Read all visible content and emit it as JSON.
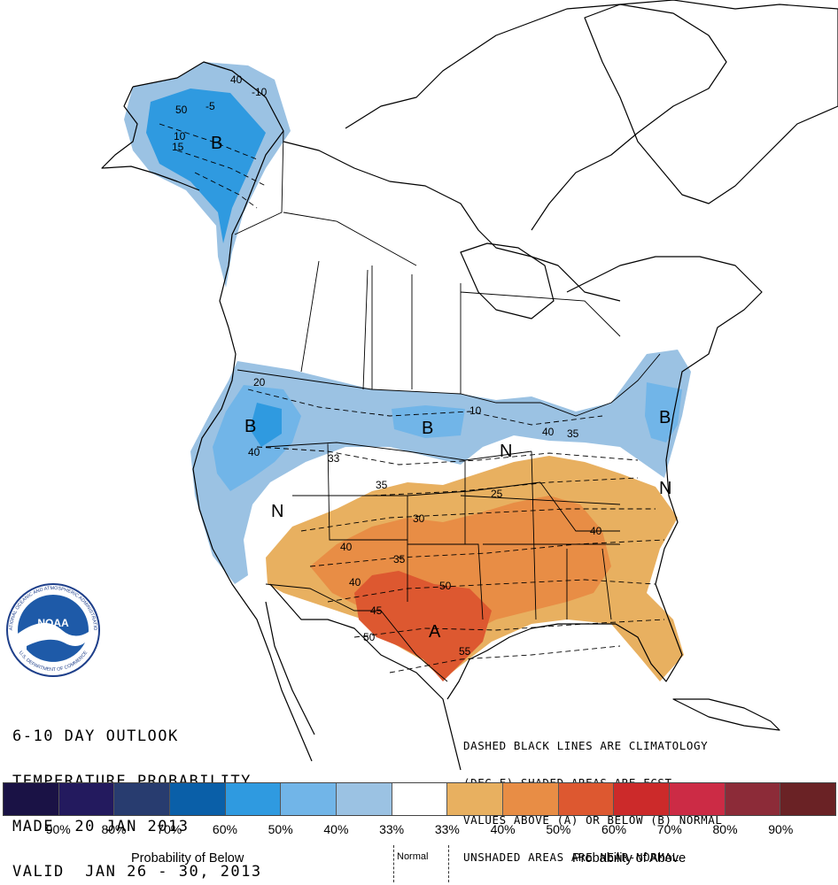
{
  "title": {
    "line1": "6-10 DAY OUTLOOK",
    "line2": "TEMPERATURE PROBABILITY",
    "line3": "MADE  20 JAN 2013",
    "line4": "VALID  JAN 26 - 30, 2013"
  },
  "notes": {
    "line1": "DASHED BLACK LINES ARE CLIMATOLOGY",
    "line2": "(DEG F) SHADED AREAS ARE FCST",
    "line3": "VALUES ABOVE (A) OR BELOW (B) NORMAL",
    "line4": "UNSHADED AREAS ARE NEAR-NORMAL"
  },
  "regions": {
    "alaska": "B",
    "northwest": "B",
    "northern_plains": "B",
    "northeast": "B",
    "great_lakes": "N",
    "mid_atlantic": "N",
    "great_basin": "N",
    "southern_plains": "A"
  },
  "contour_labels": {
    "ak1": "40",
    "ak2": "-10",
    "ak3": "50",
    "ak4": "-5",
    "ak5": "10",
    "ak6": "15",
    "nw1": "20",
    "nw2": "40",
    "np1": "10",
    "gl1": "40",
    "gl2": "35",
    "c1": "33",
    "c2": "35",
    "c3": "25",
    "c4": "30",
    "c5": "40",
    "c6": "35",
    "c7": "40",
    "c8": "50",
    "c9": "45",
    "c10": "50",
    "c11": "55",
    "c12": "40"
  },
  "noaa_logo": {
    "center_text": "NOAA",
    "ring_top": "NATIONAL OCEANIC AND ATMOSPHERIC ADMINISTRATION",
    "ring_bottom": "U.S. DEPARTMENT OF COMMERCE"
  },
  "legend": {
    "colors": [
      "#1a1245",
      "#231a5e",
      "#283c6f",
      "#0a5fa8",
      "#2f9ae0",
      "#71b5e8",
      "#9bc2e3",
      "#ffffff",
      "#e8b060",
      "#e88d45",
      "#dd5830",
      "#cc2a2a",
      "#cc2b45",
      "#8c2b38",
      "#6a2225"
    ],
    "ticks": [
      "90%",
      "80%",
      "70%",
      "60%",
      "50%",
      "40%",
      "33%",
      "33%",
      "40%",
      "50%",
      "60%",
      "70%",
      "80%",
      "90%"
    ],
    "below_caption": "Probability of Below",
    "normal_caption": "Normal",
    "above_caption": "Probability of Above"
  },
  "shading_colors": {
    "below_40": "#9bc2e3",
    "below_50": "#71b5e8",
    "below_60": "#2f9ae0",
    "above_40": "#e8b060",
    "above_50": "#e88d45",
    "above_60": "#dd5830"
  }
}
